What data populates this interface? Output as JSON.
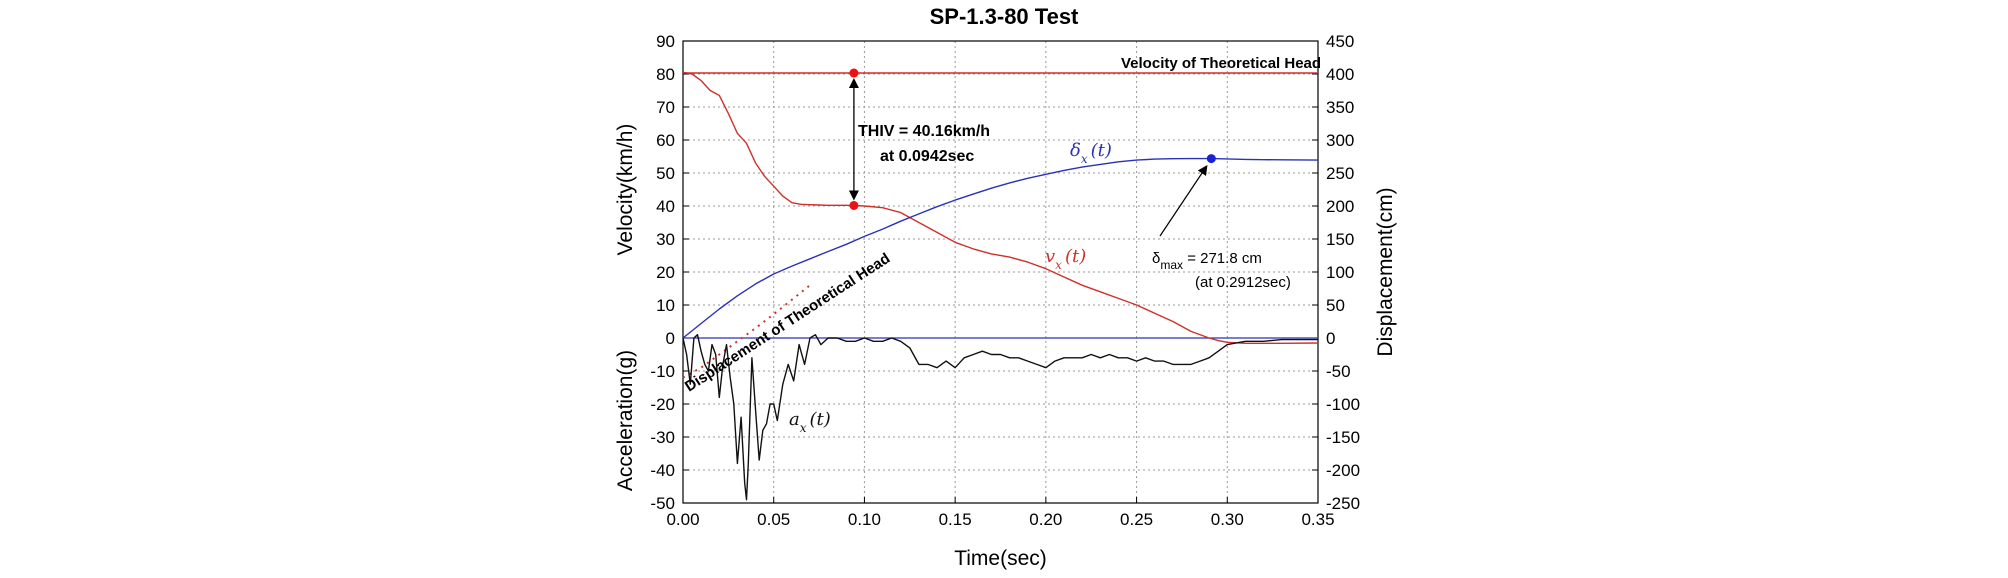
{
  "chart_data": {
    "type": "line",
    "title": "SP-1.3-80 Test",
    "xlabel": "Time(sec)",
    "ylabel_left_top": "Velocity(km/h)",
    "ylabel_left_bottom": "Acceleration(g)",
    "ylabel_right": "Displacement(cm)",
    "xlim": [
      0.0,
      0.35
    ],
    "ylim_left": [
      -50,
      90
    ],
    "ylim_right": [
      -250,
      450
    ],
    "x_ticks": [
      "0.00",
      "0.05",
      "0.10",
      "0.15",
      "0.20",
      "0.25",
      "0.30",
      "0.35"
    ],
    "y_left_ticks": [
      "-50",
      "-40",
      "-30",
      "-20",
      "-10",
      "0",
      "10",
      "20",
      "30",
      "40",
      "50",
      "60",
      "70",
      "80",
      "90"
    ],
    "y_right_ticks": [
      "-250",
      "-200",
      "-150",
      "-100",
      "-50",
      "0",
      "50",
      "100",
      "150",
      "200",
      "250",
      "300",
      "350",
      "400",
      "450"
    ],
    "grid": true,
    "series": [
      {
        "name": "v_x(t)",
        "color": "#d0302a",
        "axis": "left",
        "x": [
          0.0,
          0.005,
          0.01,
          0.015,
          0.02,
          0.025,
          0.03,
          0.035,
          0.04,
          0.045,
          0.05,
          0.055,
          0.06,
          0.065,
          0.07,
          0.075,
          0.08,
          0.09,
          0.0942,
          0.1,
          0.11,
          0.12,
          0.13,
          0.14,
          0.15,
          0.16,
          0.17,
          0.18,
          0.19,
          0.2,
          0.21,
          0.22,
          0.23,
          0.24,
          0.25,
          0.26,
          0.27,
          0.28,
          0.29,
          0.295,
          0.3,
          0.31,
          0.33,
          0.35
        ],
        "y": [
          80.5,
          80,
          78,
          75,
          73.5,
          68,
          62,
          59,
          53,
          49,
          46,
          43,
          41,
          40.5,
          40.4,
          40.3,
          40.2,
          40.2,
          40.16,
          40,
          39.5,
          38,
          35,
          32,
          29,
          27,
          25.5,
          24.5,
          23,
          21,
          18.5,
          16,
          14,
          12,
          10,
          7.5,
          5,
          2,
          0,
          -0.8,
          -1.3,
          -1.6,
          -1.6,
          -1.5
        ]
      },
      {
        "name": "Velocity of Theoretical Head",
        "color": "#d0302a",
        "axis": "left",
        "x": [
          0.0,
          0.35
        ],
        "y": [
          80.3,
          80.3
        ]
      },
      {
        "name": "δx(t)",
        "color": "#2b32b8",
        "axis": "right",
        "x": [
          0.0,
          0.01,
          0.02,
          0.03,
          0.04,
          0.05,
          0.06,
          0.07,
          0.08,
          0.09,
          0.1,
          0.11,
          0.12,
          0.13,
          0.14,
          0.15,
          0.16,
          0.17,
          0.18,
          0.19,
          0.2,
          0.21,
          0.22,
          0.23,
          0.24,
          0.25,
          0.26,
          0.27,
          0.28,
          0.2912,
          0.3,
          0.31,
          0.32,
          0.33,
          0.34,
          0.35
        ],
        "y": [
          0,
          22,
          44,
          64,
          82,
          97,
          109,
          120,
          131,
          142,
          154,
          165,
          177,
          188,
          199,
          209,
          218,
          227,
          235,
          242,
          248,
          254,
          259,
          263,
          267,
          269.5,
          271,
          271.6,
          271.8,
          271.8,
          271.3,
          270.6,
          270.2,
          270.0,
          269.8,
          269.6
        ]
      },
      {
        "name": "Displacement of Theoretical Head",
        "color": "#d0302a",
        "axis": "right",
        "dashed": true,
        "x": [
          0.0,
          0.01,
          0.02,
          0.03,
          0.04,
          0.05,
          0.06,
          0.07
        ],
        "y": [
          -60,
          -45,
          -25,
          -5,
          15,
          36,
          58,
          80
        ]
      },
      {
        "name": "a_x(t)",
        "color": "#111111",
        "axis": "left",
        "x": [
          0.0,
          0.002,
          0.004,
          0.006,
          0.008,
          0.01,
          0.012,
          0.014,
          0.016,
          0.018,
          0.02,
          0.022,
          0.024,
          0.026,
          0.028,
          0.03,
          0.032,
          0.034,
          0.035,
          0.036,
          0.038,
          0.04,
          0.042,
          0.044,
          0.046,
          0.048,
          0.05,
          0.052,
          0.055,
          0.058,
          0.061,
          0.064,
          0.067,
          0.07,
          0.073,
          0.076,
          0.08,
          0.085,
          0.09,
          0.095,
          0.1,
          0.105,
          0.11,
          0.115,
          0.12,
          0.125,
          0.13,
          0.135,
          0.14,
          0.145,
          0.15,
          0.155,
          0.16,
          0.165,
          0.17,
          0.175,
          0.18,
          0.185,
          0.19,
          0.195,
          0.2,
          0.205,
          0.21,
          0.215,
          0.22,
          0.225,
          0.23,
          0.235,
          0.24,
          0.245,
          0.25,
          0.255,
          0.26,
          0.265,
          0.27,
          0.275,
          0.28,
          0.285,
          0.29,
          0.295,
          0.3,
          0.31,
          0.32,
          0.33,
          0.34,
          0.35
        ],
        "y": [
          0,
          -5,
          -14,
          0,
          1,
          -4,
          -8,
          -10,
          -2,
          -5,
          -18,
          -8,
          -2,
          -12,
          -20,
          -38,
          -24,
          -44,
          -49,
          -38,
          -6,
          -22,
          -37,
          -28,
          -26,
          -20,
          -20,
          -25,
          -14,
          -8,
          -13,
          -2,
          -8,
          0,
          1,
          -2,
          0,
          0,
          -1,
          -1,
          0,
          -1,
          -1,
          0,
          -1,
          -3,
          -8,
          -8,
          -9,
          -7,
          -9,
          -6,
          -5,
          -4,
          -5,
          -5,
          -6,
          -6,
          -7,
          -8,
          -9,
          -7,
          -6,
          -6,
          -6,
          -5,
          -6,
          -5,
          -6,
          -6,
          -7,
          -6,
          -7,
          -7,
          -8,
          -8,
          -8,
          -7,
          -6,
          -4,
          -2,
          -1,
          -1,
          -0.5,
          -0.5,
          -0.5
        ]
      }
    ],
    "annotations": {
      "thiv_line1": "THIV = 40.16km/h",
      "thiv_line2": "at 0.0942sec",
      "thiv_time": 0.0942,
      "thiv_v_top": 80.3,
      "thiv_v_bottom": 40.16,
      "dmax_sym": "δ",
      "dmax_sub": "max",
      "dmax_value": " = 271.8 cm",
      "dmax_time_text": "(at 0.2912sec)",
      "dmax_time": 0.2912,
      "dmax_disp": 271.8,
      "label_velocity_head": "Velocity of Theoretical Head",
      "label_disp_head": "Displacement of Theoretical Head",
      "label_vx_main": "v",
      "label_vx_sub": "x",
      "label_vx_arg": "(t)",
      "label_dx_main": "δ",
      "label_dx_sub": "x",
      "label_dx_arg": "(t)",
      "label_ax_main": "a",
      "label_ax_sub": "x",
      "label_ax_arg": "(t)"
    }
  }
}
